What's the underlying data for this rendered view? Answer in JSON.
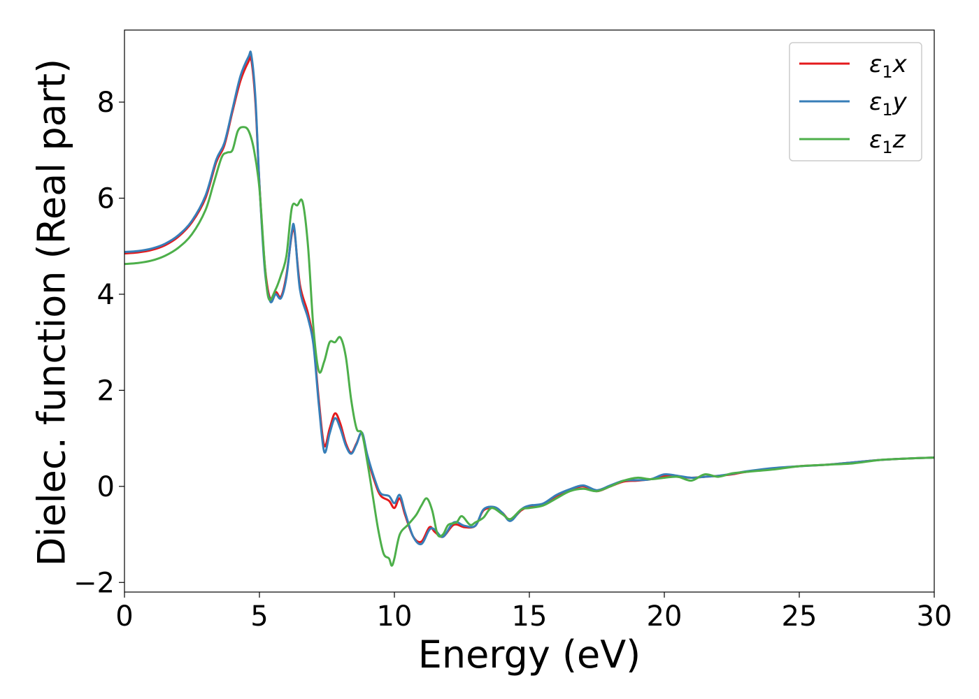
{
  "chart_data": {
    "type": "line",
    "xlabel": "Energy (eV)",
    "ylabel": "Dielec. function (Real part)",
    "xlim": [
      0,
      30
    ],
    "ylim": [
      -2.2,
      9.5
    ],
    "xticks": [
      0,
      5,
      10,
      15,
      20,
      25,
      30
    ],
    "xtick_labels": [
      "0",
      "5",
      "10",
      "15",
      "20",
      "25",
      "30"
    ],
    "yticks": [
      -2,
      0,
      2,
      4,
      6,
      8
    ],
    "ytick_labels": [
      "−2",
      "0",
      "2",
      "4",
      "6",
      "8"
    ],
    "grid": false,
    "legend_position": "top-right",
    "series": [
      {
        "name": "ε1x",
        "legend": {
          "main": "ε",
          "sub": "1",
          "suffix": "x"
        },
        "color": "#e41a1c",
        "points": [
          [
            0,
            4.85
          ],
          [
            0.5,
            4.87
          ],
          [
            1,
            4.92
          ],
          [
            1.5,
            5.02
          ],
          [
            2,
            5.2
          ],
          [
            2.5,
            5.5
          ],
          [
            3,
            6.0
          ],
          [
            3.4,
            6.75
          ],
          [
            3.7,
            7.1
          ],
          [
            4.0,
            7.8
          ],
          [
            4.3,
            8.45
          ],
          [
            4.6,
            8.85
          ],
          [
            4.7,
            8.88
          ],
          [
            4.85,
            8.0
          ],
          [
            5.0,
            6.3
          ],
          [
            5.2,
            4.6
          ],
          [
            5.4,
            3.9
          ],
          [
            5.6,
            4.05
          ],
          [
            5.8,
            3.95
          ],
          [
            6.0,
            4.4
          ],
          [
            6.2,
            5.25
          ],
          [
            6.3,
            5.3
          ],
          [
            6.5,
            4.2
          ],
          [
            6.8,
            3.6
          ],
          [
            7.0,
            3.0
          ],
          [
            7.2,
            1.8
          ],
          [
            7.4,
            0.85
          ],
          [
            7.6,
            1.2
          ],
          [
            7.8,
            1.52
          ],
          [
            8.0,
            1.3
          ],
          [
            8.2,
            0.9
          ],
          [
            8.4,
            0.7
          ],
          [
            8.6,
            0.9
          ],
          [
            8.8,
            1.1
          ],
          [
            9.0,
            0.6
          ],
          [
            9.3,
            0.05
          ],
          [
            9.5,
            -0.2
          ],
          [
            9.8,
            -0.3
          ],
          [
            10.0,
            -0.45
          ],
          [
            10.2,
            -0.25
          ],
          [
            10.4,
            -0.6
          ],
          [
            10.7,
            -1.05
          ],
          [
            11.0,
            -1.15
          ],
          [
            11.3,
            -0.85
          ],
          [
            11.5,
            -0.95
          ],
          [
            11.8,
            -1.05
          ],
          [
            12.2,
            -0.8
          ],
          [
            12.6,
            -0.85
          ],
          [
            13.0,
            -0.82
          ],
          [
            13.3,
            -0.5
          ],
          [
            13.7,
            -0.45
          ],
          [
            14.0,
            -0.55
          ],
          [
            14.3,
            -0.7
          ],
          [
            14.7,
            -0.5
          ],
          [
            15.0,
            -0.42
          ],
          [
            15.5,
            -0.38
          ],
          [
            16.0,
            -0.2
          ],
          [
            16.5,
            -0.08
          ],
          [
            17.0,
            0.0
          ],
          [
            17.5,
            -0.1
          ],
          [
            18.0,
            0.0
          ],
          [
            18.5,
            0.1
          ],
          [
            19.0,
            0.12
          ],
          [
            19.5,
            0.15
          ],
          [
            20.0,
            0.22
          ],
          [
            20.5,
            0.2
          ],
          [
            21.0,
            0.18
          ],
          [
            21.5,
            0.2
          ],
          [
            22.0,
            0.22
          ],
          [
            22.5,
            0.25
          ],
          [
            23.0,
            0.3
          ],
          [
            24.0,
            0.37
          ],
          [
            25.0,
            0.42
          ],
          [
            26.0,
            0.45
          ],
          [
            27.0,
            0.5
          ],
          [
            28.0,
            0.55
          ],
          [
            29.0,
            0.58
          ],
          [
            30.0,
            0.6
          ]
        ]
      },
      {
        "name": "ε1y",
        "legend": {
          "main": "ε",
          "sub": "1",
          "suffix": "y"
        },
        "color": "#377eb8",
        "points": [
          [
            0,
            4.88
          ],
          [
            0.5,
            4.9
          ],
          [
            1,
            4.95
          ],
          [
            1.5,
            5.05
          ],
          [
            2,
            5.23
          ],
          [
            2.5,
            5.53
          ],
          [
            3,
            6.05
          ],
          [
            3.4,
            6.8
          ],
          [
            3.7,
            7.15
          ],
          [
            4.0,
            7.85
          ],
          [
            4.3,
            8.55
          ],
          [
            4.6,
            8.95
          ],
          [
            4.7,
            8.98
          ],
          [
            4.85,
            8.1
          ],
          [
            5.0,
            6.3
          ],
          [
            5.2,
            4.5
          ],
          [
            5.4,
            3.85
          ],
          [
            5.6,
            4.0
          ],
          [
            5.8,
            3.92
          ],
          [
            6.0,
            4.35
          ],
          [
            6.2,
            5.3
          ],
          [
            6.3,
            5.35
          ],
          [
            6.5,
            4.1
          ],
          [
            6.8,
            3.5
          ],
          [
            7.0,
            2.95
          ],
          [
            7.2,
            1.7
          ],
          [
            7.4,
            0.72
          ],
          [
            7.6,
            1.1
          ],
          [
            7.8,
            1.42
          ],
          [
            8.0,
            1.2
          ],
          [
            8.2,
            0.85
          ],
          [
            8.4,
            0.68
          ],
          [
            8.6,
            0.88
          ],
          [
            8.8,
            1.12
          ],
          [
            9.0,
            0.65
          ],
          [
            9.3,
            0.1
          ],
          [
            9.5,
            -0.15
          ],
          [
            9.8,
            -0.2
          ],
          [
            10.0,
            -0.35
          ],
          [
            10.2,
            -0.18
          ],
          [
            10.4,
            -0.55
          ],
          [
            10.7,
            -1.05
          ],
          [
            11.0,
            -1.2
          ],
          [
            11.3,
            -0.9
          ],
          [
            11.5,
            -0.9
          ],
          [
            11.8,
            -1.05
          ],
          [
            12.2,
            -0.75
          ],
          [
            12.6,
            -0.82
          ],
          [
            13.0,
            -0.82
          ],
          [
            13.3,
            -0.48
          ],
          [
            13.7,
            -0.43
          ],
          [
            14.0,
            -0.55
          ],
          [
            14.3,
            -0.72
          ],
          [
            14.7,
            -0.48
          ],
          [
            15.0,
            -0.4
          ],
          [
            15.5,
            -0.36
          ],
          [
            16.0,
            -0.18
          ],
          [
            16.5,
            -0.06
          ],
          [
            17.0,
            0.02
          ],
          [
            17.5,
            -0.08
          ],
          [
            18.0,
            0.02
          ],
          [
            18.5,
            0.12
          ],
          [
            19.0,
            0.13
          ],
          [
            19.5,
            0.15
          ],
          [
            20.0,
            0.25
          ],
          [
            20.5,
            0.22
          ],
          [
            21.0,
            0.18
          ],
          [
            21.5,
            0.2
          ],
          [
            22.0,
            0.22
          ],
          [
            22.5,
            0.26
          ],
          [
            23.0,
            0.31
          ],
          [
            24.0,
            0.38
          ],
          [
            25.0,
            0.42
          ],
          [
            26.0,
            0.45
          ],
          [
            27.0,
            0.5
          ],
          [
            28.0,
            0.55
          ],
          [
            29.0,
            0.58
          ],
          [
            30.0,
            0.6
          ]
        ]
      },
      {
        "name": "ε1z",
        "legend": {
          "main": "ε",
          "sub": "1",
          "suffix": "z"
        },
        "color": "#4daf4a",
        "points": [
          [
            0,
            4.63
          ],
          [
            0.5,
            4.65
          ],
          [
            1,
            4.7
          ],
          [
            1.5,
            4.8
          ],
          [
            2,
            4.97
          ],
          [
            2.5,
            5.25
          ],
          [
            3,
            5.75
          ],
          [
            3.3,
            6.3
          ],
          [
            3.6,
            6.85
          ],
          [
            3.8,
            6.95
          ],
          [
            4.0,
            7.0
          ],
          [
            4.2,
            7.4
          ],
          [
            4.4,
            7.48
          ],
          [
            4.6,
            7.4
          ],
          [
            4.8,
            7.0
          ],
          [
            5.0,
            6.2
          ],
          [
            5.2,
            4.6
          ],
          [
            5.35,
            3.9
          ],
          [
            5.6,
            4.1
          ],
          [
            5.8,
            4.4
          ],
          [
            6.0,
            4.8
          ],
          [
            6.2,
            5.8
          ],
          [
            6.4,
            5.85
          ],
          [
            6.6,
            5.92
          ],
          [
            6.8,
            5.0
          ],
          [
            7.0,
            3.3
          ],
          [
            7.2,
            2.4
          ],
          [
            7.4,
            2.6
          ],
          [
            7.6,
            3.0
          ],
          [
            7.8,
            3.0
          ],
          [
            8.0,
            3.1
          ],
          [
            8.2,
            2.7
          ],
          [
            8.4,
            1.8
          ],
          [
            8.6,
            1.2
          ],
          [
            8.8,
            1.1
          ],
          [
            9.0,
            0.5
          ],
          [
            9.2,
            -0.2
          ],
          [
            9.4,
            -0.9
          ],
          [
            9.6,
            -1.4
          ],
          [
            9.8,
            -1.5
          ],
          [
            9.9,
            -1.65
          ],
          [
            10.0,
            -1.5
          ],
          [
            10.2,
            -1.0
          ],
          [
            10.5,
            -0.8
          ],
          [
            10.8,
            -0.6
          ],
          [
            11.0,
            -0.4
          ],
          [
            11.2,
            -0.25
          ],
          [
            11.4,
            -0.5
          ],
          [
            11.6,
            -1.0
          ],
          [
            11.8,
            -1.0
          ],
          [
            12.0,
            -0.8
          ],
          [
            12.3,
            -0.75
          ],
          [
            12.5,
            -0.62
          ],
          [
            12.8,
            -0.8
          ],
          [
            13.0,
            -0.75
          ],
          [
            13.3,
            -0.65
          ],
          [
            13.6,
            -0.45
          ],
          [
            14.0,
            -0.58
          ],
          [
            14.3,
            -0.68
          ],
          [
            14.7,
            -0.48
          ],
          [
            15.0,
            -0.45
          ],
          [
            15.5,
            -0.4
          ],
          [
            16.0,
            -0.25
          ],
          [
            16.5,
            -0.1
          ],
          [
            17.0,
            -0.05
          ],
          [
            17.5,
            -0.1
          ],
          [
            18.0,
            0.0
          ],
          [
            18.5,
            0.12
          ],
          [
            19.0,
            0.18
          ],
          [
            19.5,
            0.15
          ],
          [
            20.0,
            0.18
          ],
          [
            20.5,
            0.2
          ],
          [
            21.0,
            0.12
          ],
          [
            21.5,
            0.25
          ],
          [
            22.0,
            0.2
          ],
          [
            22.5,
            0.27
          ],
          [
            23.0,
            0.3
          ],
          [
            24.0,
            0.35
          ],
          [
            25.0,
            0.42
          ],
          [
            26.0,
            0.45
          ],
          [
            27.0,
            0.48
          ],
          [
            28.0,
            0.55
          ],
          [
            29.0,
            0.58
          ],
          [
            30.0,
            0.6
          ]
        ]
      }
    ]
  }
}
